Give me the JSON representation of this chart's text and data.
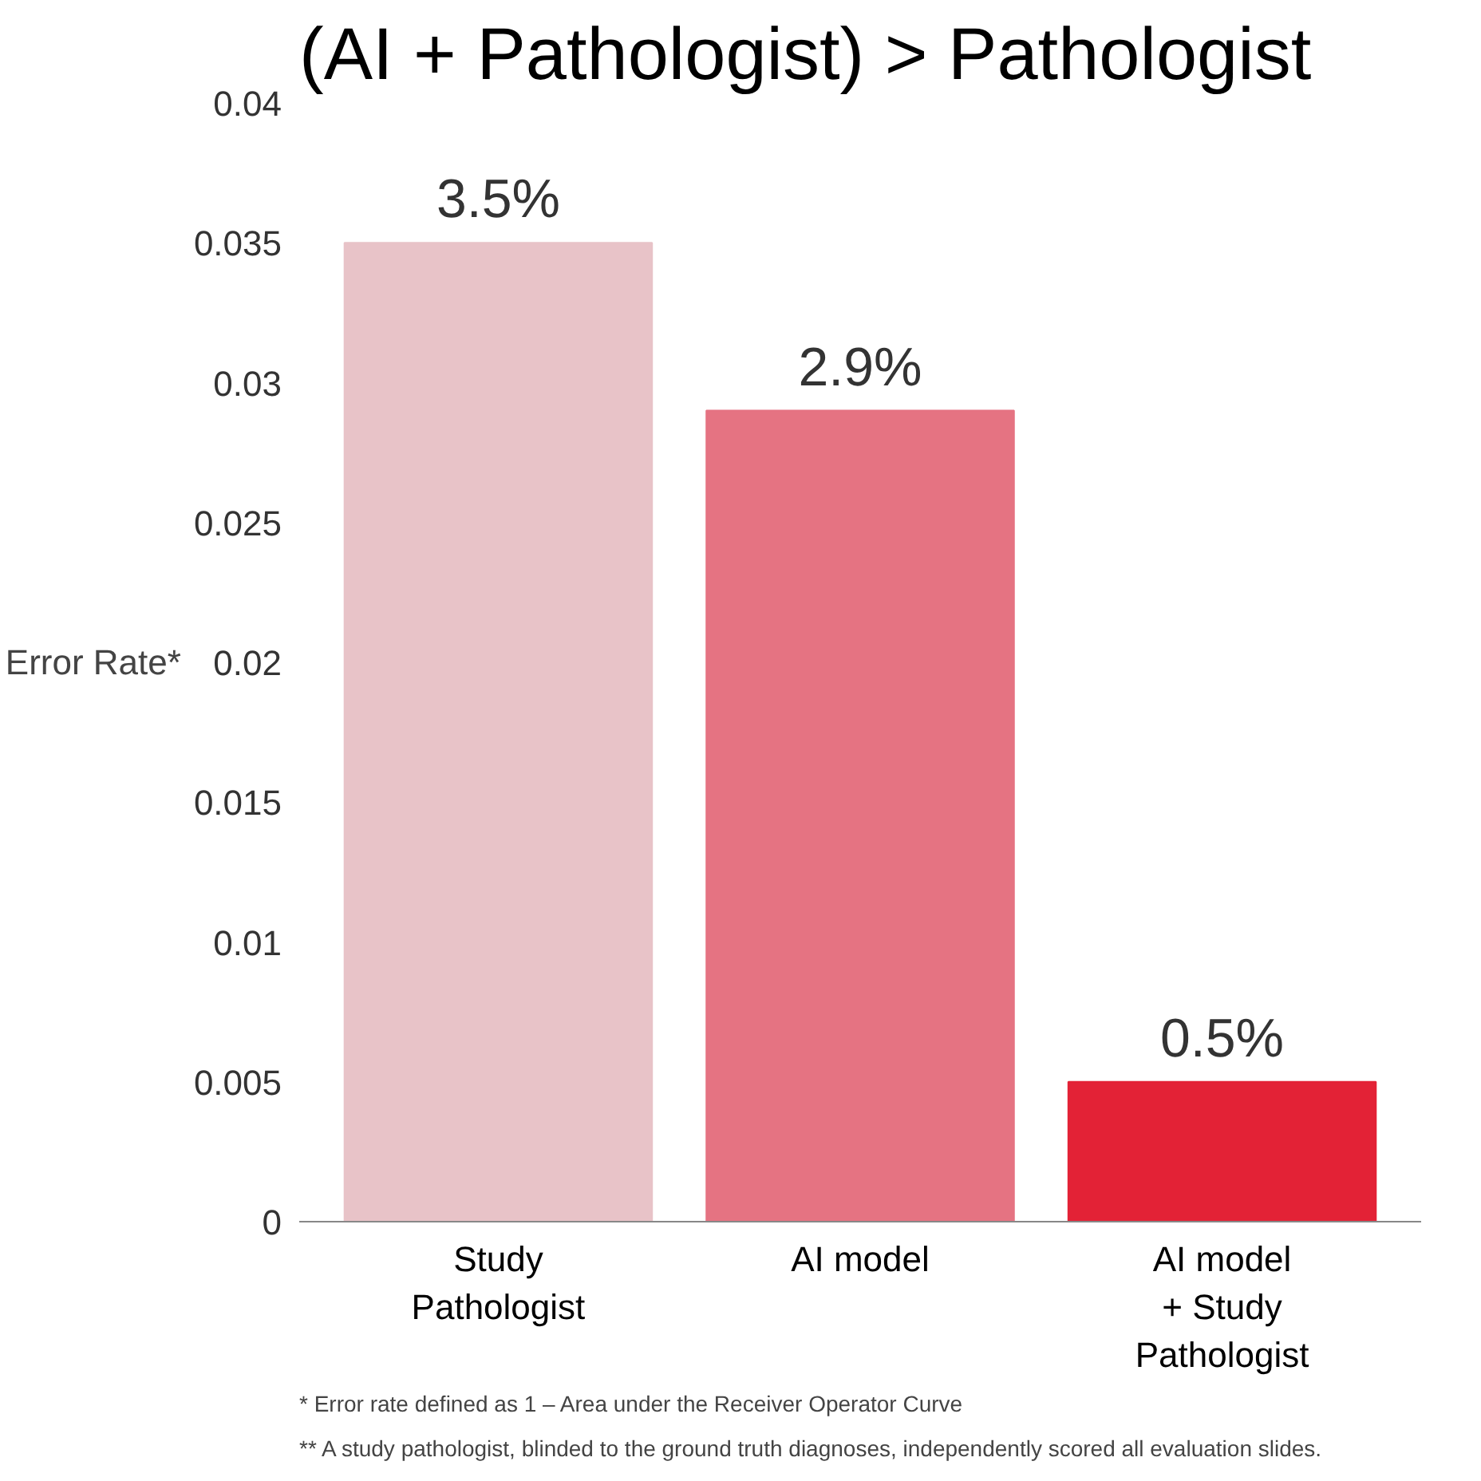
{
  "chart_data": {
    "type": "bar",
    "title": "(AI + Pathologist) > Pathologist",
    "ylabel": "Error Rate*",
    "categories": [
      "Study\nPathologist",
      "AI model",
      "AI model\n+ Study\nPathologist"
    ],
    "values": [
      0.035,
      0.029,
      0.005
    ],
    "colors": [
      "#e8c3c8",
      "#e57382",
      "#e32236"
    ],
    "value_labels": [
      "3.5%",
      "2.9%",
      "0.5%"
    ],
    "ylim": [
      0,
      0.04
    ],
    "yticks": [
      0,
      0.005,
      0.01,
      0.015,
      0.02,
      0.025,
      0.03,
      0.035,
      0.04
    ],
    "grid": false,
    "annotations": [
      "* Error rate defined as 1 – Area under the Receiver Operator Curve",
      "** A study pathologist, blinded to the ground truth diagnoses, independently scored all evaluation slides."
    ]
  }
}
